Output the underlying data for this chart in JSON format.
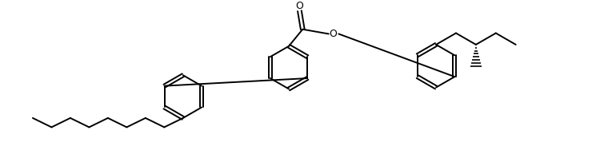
{
  "background": "#ffffff",
  "line_color": "#000000",
  "lw": 1.4,
  "fig_w": 7.7,
  "fig_h": 2.08,
  "dpi": 100,
  "ring_r": 0.28
}
